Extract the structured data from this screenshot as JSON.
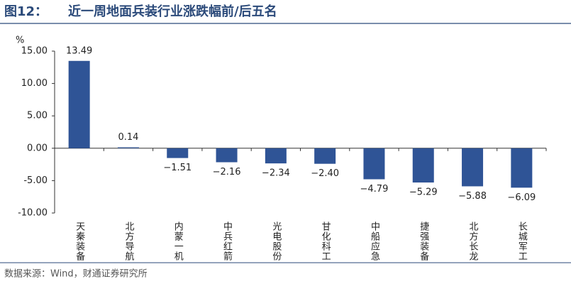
{
  "chart_data": {
    "type": "bar",
    "figure_label": "图12：",
    "title": "近一周地面兵装行业涨跌幅前/后五名",
    "y_label": "%",
    "categories": [
      "天秦装备",
      "北方导航",
      "内蒙一机",
      "中兵红箭",
      "光电股份",
      "甘化科工",
      "中船应急",
      "捷强装备",
      "北方长龙",
      "长城军工"
    ],
    "values": [
      13.49,
      0.14,
      -1.51,
      -2.16,
      -2.34,
      -2.4,
      -4.79,
      -5.29,
      -5.88,
      -6.09
    ],
    "value_labels": [
      "13.49",
      "0.14",
      "−1.51",
      "−2.16",
      "−2.34",
      "−2.40",
      "−4.79",
      "−5.29",
      "−5.88",
      "−6.09"
    ],
    "color": "#2f5496",
    "ylim": [
      -10,
      15
    ],
    "yticks": [
      {
        "value": -10,
        "label": "-10.00"
      },
      {
        "value": -5,
        "label": "-5.00"
      },
      {
        "value": 0,
        "label": "0.00"
      },
      {
        "value": 5,
        "label": "5.00"
      },
      {
        "value": 10,
        "label": "10.00"
      },
      {
        "value": 15,
        "label": "15.00"
      }
    ],
    "source": "数据来源：Wind，财通证券研究所"
  }
}
